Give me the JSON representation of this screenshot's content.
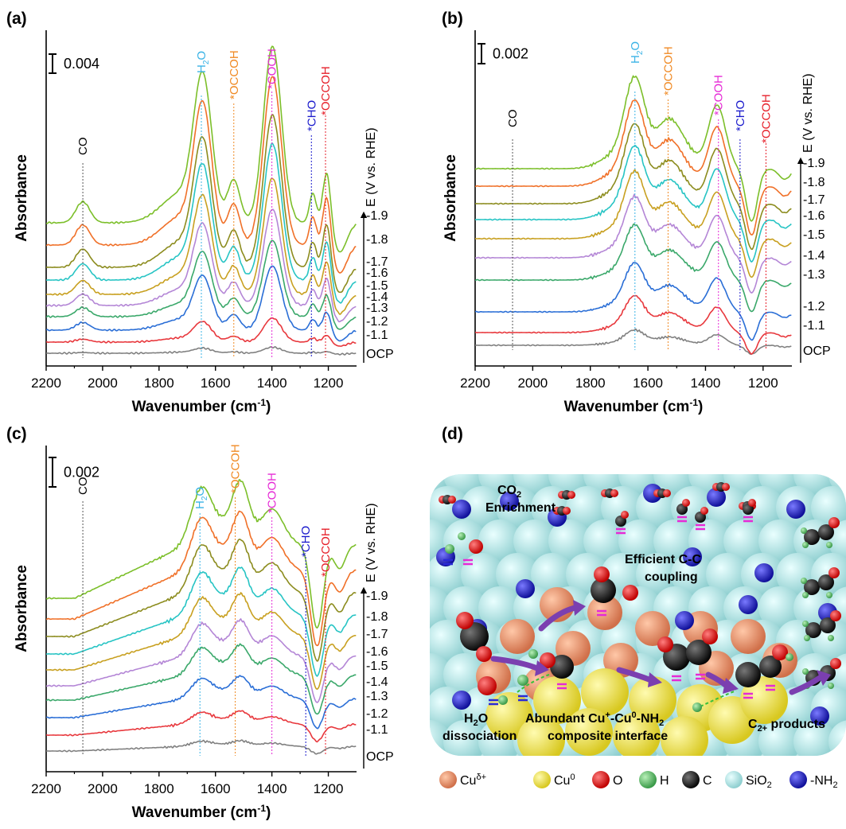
{
  "panels": {
    "a": {
      "label": "(a)",
      "scale_bar": "0.004"
    },
    "b": {
      "label": "(b)",
      "scale_bar": "0.002"
    },
    "c": {
      "label": "(c)",
      "scale_bar": "0.002"
    },
    "d": {
      "label": "(d)"
    }
  },
  "axes": {
    "xlabel_main": "Wavenumber (cm",
    "xlabel_sup": "-1",
    "xlabel_close": ")",
    "ylabel": "Absorbance",
    "bias_axis_label": "E (V vs. RHE)",
    "xticks": [
      "2200",
      "2000",
      "1800",
      "1600",
      "1400",
      "1200"
    ]
  },
  "bias_labels": [
    "OCP",
    "-1.1",
    "-1.2",
    "-1.3",
    "-1.4",
    "-1.5",
    "-1.6",
    "-1.7",
    "-1.8",
    "-1.9"
  ],
  "peak_labels": {
    "co": "CO",
    "h2o_main": "H",
    "h2o_sub": "2",
    "h2o_end": "O",
    "occoh": "*OCCOH",
    "cooh": "*COOH",
    "cho": "*CHO",
    "occoh2": "*OCCOH"
  },
  "colors": {
    "series": [
      "#808080",
      "#e8383d",
      "#2a6ed6",
      "#3aa86a",
      "#b486d6",
      "#c8a020",
      "#27c4c4",
      "#8c8c1e",
      "#f07028",
      "#7cbf2a"
    ],
    "h2o": "#3ab3e6",
    "occoh": "#f08a24",
    "cooh": "#e62ad6",
    "cho": "#1a1acc",
    "occoh2": "#e61e28"
  },
  "chart_data": [
    {
      "panel": "a",
      "type": "line",
      "xlabel": "Wavenumber (cm-1)",
      "ylabel": "Absorbance",
      "xlim": [
        2200,
        1100
      ],
      "x_reversed": true,
      "scale_bar": "0.004",
      "series_names": [
        "OCP",
        "-1.1",
        "-1.2",
        "-1.3",
        "-1.4",
        "-1.5",
        "-1.6",
        "-1.7",
        "-1.8",
        "-1.9"
      ],
      "peak_positions_cm1": {
        "CO": 2070,
        "H2O": 1650,
        "*OCCOH": 1535,
        "*COOH": 1400,
        "*CHO": 1260,
        "*OCCOH (2)": 1210
      }
    },
    {
      "panel": "b",
      "type": "line",
      "xlabel": "Wavenumber (cm-1)",
      "ylabel": "Absorbance",
      "xlim": [
        2200,
        1100
      ],
      "x_reversed": true,
      "scale_bar": "0.002",
      "series_names": [
        "OCP",
        "-1.1",
        "-1.2",
        "-1.3",
        "-1.4",
        "-1.5",
        "-1.6",
        "-1.7",
        "-1.8",
        "-1.9"
      ],
      "peak_positions_cm1": {
        "CO": 2070,
        "H2O": 1645,
        "*OCCOH": 1530,
        "*COOH": 1355,
        "*CHO": 1280,
        "*OCCOH (2)": 1190
      }
    },
    {
      "panel": "c",
      "type": "line",
      "xlabel": "Wavenumber (cm-1)",
      "ylabel": "Absorbance",
      "xlim": [
        2200,
        1100
      ],
      "x_reversed": true,
      "scale_bar": "0.002",
      "series_names": [
        "OCP",
        "-1.1",
        "-1.2",
        "-1.3",
        "-1.4",
        "-1.5",
        "-1.6",
        "-1.7",
        "-1.8",
        "-1.9"
      ],
      "peak_positions_cm1": {
        "CO": 2070,
        "H2O": 1655,
        "*OCCOH": 1530,
        "*COOH": 1400,
        "*CHO": 1280,
        "*OCCOH (2)": 1210
      }
    }
  ],
  "schematic": {
    "co2_main": "CO",
    "co2_sub": "2",
    "co2_line2": "Enrichment",
    "cc_line1": "Efficient C-C",
    "cc_line2": "coupling",
    "h2o_main": "H",
    "h2o_sub": "2",
    "h2o_end": "O",
    "h2o_line2": "dissociation",
    "interface_line1_a": "Abundant Cu",
    "interface_sup1": "+",
    "interface_line1_b": "-Cu",
    "interface_sup2": "0",
    "interface_line1_c": "-NH",
    "interface_sub": "2",
    "interface_line2": "composite interface",
    "product_main": "C",
    "product_sub": "2+",
    "product_end": " products"
  },
  "legend": [
    {
      "label": "Cu",
      "sup": "δ+",
      "color": "#e8896a"
    },
    {
      "label": "Cu",
      "sup": "0",
      "color": "#e6e04a"
    },
    {
      "label": "O",
      "sup": "",
      "color": "#e01818"
    },
    {
      "label": "H",
      "sup": "",
      "color": "#5cc46a"
    },
    {
      "label": "C",
      "sup": "",
      "color": "#222222"
    },
    {
      "label": "SiO",
      "sub": "2",
      "color": "#a8e0e0"
    },
    {
      "label": "-NH",
      "sub": "2",
      "color": "#2a2ac8"
    }
  ]
}
